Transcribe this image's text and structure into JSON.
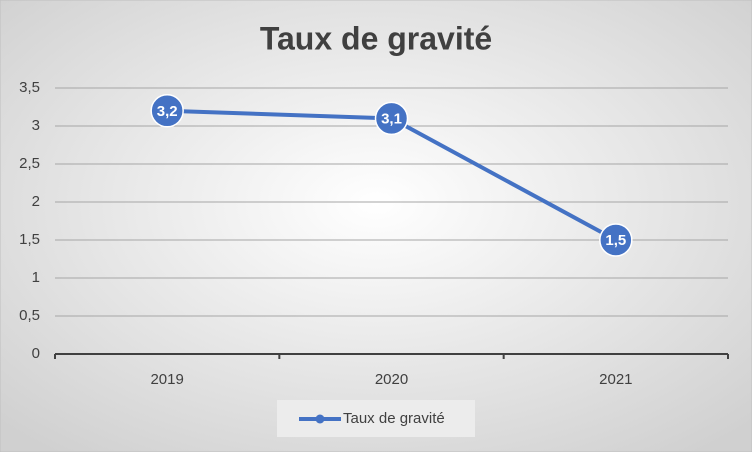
{
  "chart_data": {
    "type": "line",
    "title": "Taux de gravité",
    "categories": [
      "2019",
      "2020",
      "2021"
    ],
    "series": [
      {
        "name": "Taux de gravité",
        "color": "#4472c4",
        "values": [
          3.2,
          3.1,
          1.5
        ],
        "value_labels": [
          "3,2",
          "3,1",
          "1,5"
        ]
      }
    ],
    "ylim": [
      0,
      3.5
    ],
    "yticks": [
      0,
      {
        "value": 0.5,
        "label": "0,5"
      },
      1,
      {
        "value": 1.5,
        "label": "1,5"
      },
      2,
      {
        "value": 2.5,
        "label": "2,5"
      },
      3,
      {
        "value": 3.5,
        "label": "3,5"
      }
    ],
    "grid": true,
    "legend": "bottom"
  }
}
